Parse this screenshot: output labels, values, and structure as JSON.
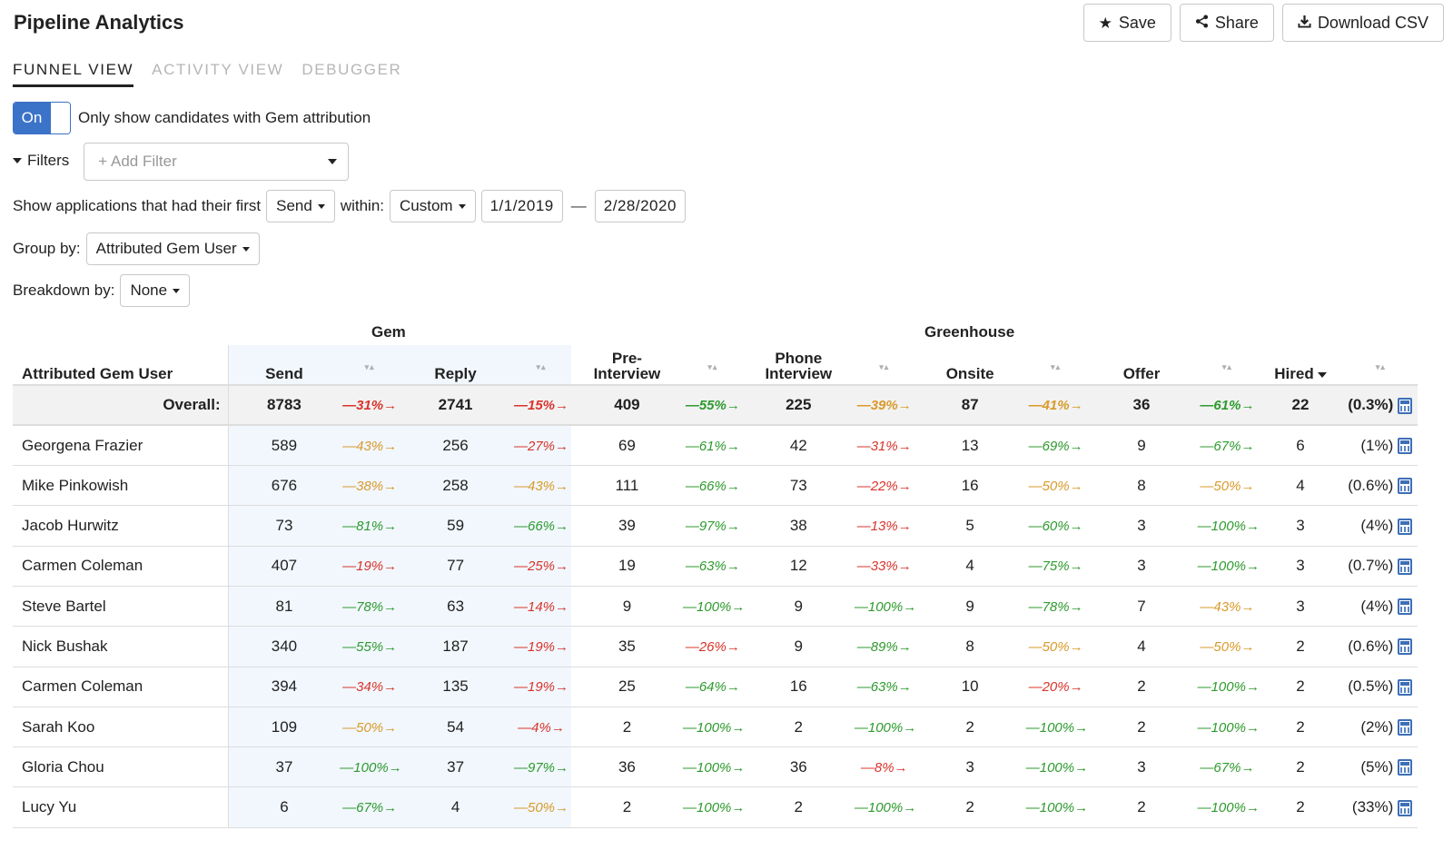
{
  "header": {
    "title": "Pipeline Analytics",
    "actions": [
      {
        "label": "Save",
        "icon": "star-icon"
      },
      {
        "label": "Share",
        "icon": "share-icon"
      },
      {
        "label": "Download CSV",
        "icon": "download-icon"
      }
    ]
  },
  "tabs": [
    {
      "label": "FUNNEL VIEW",
      "active": true
    },
    {
      "label": "ACTIVITY VIEW",
      "active": false
    },
    {
      "label": "DEBUGGER",
      "active": false
    }
  ],
  "gem_toggle": {
    "state": "On",
    "label": "Only show candidates with Gem attribution"
  },
  "filters": {
    "label": "Filters",
    "placeholder": "+ Add Filter"
  },
  "applications": {
    "prefix": "Show applications that had their first",
    "stage": "Send",
    "within_label": "within:",
    "range": "Custom",
    "start_date": "1/1/2019",
    "separator": "—",
    "end_date": "2/28/2020"
  },
  "group_by": {
    "label": "Group by:",
    "value": "Attributed Gem User"
  },
  "breakdown_by": {
    "label": "Breakdown by:",
    "value": "None"
  },
  "table": {
    "group_headers": {
      "gem": "Gem",
      "greenhouse": "Greenhouse"
    },
    "columns": {
      "name": "Attributed Gem User",
      "send": "Send",
      "reply": "Reply",
      "pre_interview_1": "Pre-",
      "pre_interview_2": "Interview",
      "phone_1": "Phone",
      "phone_2": "Interview",
      "onsite": "Onsite",
      "offer": "Offer",
      "hired": "Hired"
    },
    "overall": {
      "label": "Overall:",
      "send": "8783",
      "c1": "—31%→",
      "reply": "2741",
      "c2": "—15%→",
      "pre": "409",
      "c3": "—55%→",
      "phone": "225",
      "c4": "—39%→",
      "onsite": "87",
      "c5": "—41%→",
      "offer": "36",
      "c6": "—61%→",
      "hired": "22",
      "pct": "(0.3%)"
    },
    "rows": [
      {
        "name": "Georgena Frazier",
        "send": "589",
        "c1": "—43%→",
        "reply": "256",
        "c2": "—27%→",
        "pre": "69",
        "c3": "—61%→",
        "phone": "42",
        "c4": "—31%→",
        "onsite": "13",
        "c5": "—69%→",
        "offer": "9",
        "c6": "—67%→",
        "hired": "6",
        "pct": "(1%)"
      },
      {
        "name": "Mike Pinkowish",
        "send": "676",
        "c1": "—38%→",
        "reply": "258",
        "c2": "—43%→",
        "pre": "111",
        "c3": "—66%→",
        "phone": "73",
        "c4": "—22%→",
        "onsite": "16",
        "c5": "—50%→",
        "offer": "8",
        "c6": "—50%→",
        "hired": "4",
        "pct": "(0.6%)"
      },
      {
        "name": "Jacob Hurwitz",
        "send": "73",
        "c1": "—81%→",
        "reply": "59",
        "c2": "—66%→",
        "pre": "39",
        "c3": "—97%→",
        "phone": "38",
        "c4": "—13%→",
        "onsite": "5",
        "c5": "—60%→",
        "offer": "3",
        "c6": "—100%→",
        "hired": "3",
        "pct": "(4%)"
      },
      {
        "name": "Carmen Coleman",
        "send": "407",
        "c1": "—19%→",
        "reply": "77",
        "c2": "—25%→",
        "pre": "19",
        "c3": "—63%→",
        "phone": "12",
        "c4": "—33%→",
        "onsite": "4",
        "c5": "—75%→",
        "offer": "3",
        "c6": "—100%→",
        "hired": "3",
        "pct": "(0.7%)"
      },
      {
        "name": "Steve Bartel",
        "send": "81",
        "c1": "—78%→",
        "reply": "63",
        "c2": "—14%→",
        "pre": "9",
        "c3": "—100%→",
        "phone": "9",
        "c4": "—100%→",
        "onsite": "9",
        "c5": "—78%→",
        "offer": "7",
        "c6": "—43%→",
        "hired": "3",
        "pct": "(4%)"
      },
      {
        "name": "Nick Bushak",
        "send": "340",
        "c1": "—55%→",
        "reply": "187",
        "c2": "—19%→",
        "pre": "35",
        "c3": "—26%→",
        "phone": "9",
        "c4": "—89%→",
        "onsite": "8",
        "c5": "—50%→",
        "offer": "4",
        "c6": "—50%→",
        "hired": "2",
        "pct": "(0.6%)"
      },
      {
        "name": "Carmen Coleman",
        "send": "394",
        "c1": "—34%→",
        "reply": "135",
        "c2": "—19%→",
        "pre": "25",
        "c3": "—64%→",
        "phone": "16",
        "c4": "—63%→",
        "onsite": "10",
        "c5": "—20%→",
        "offer": "2",
        "c6": "—100%→",
        "hired": "2",
        "pct": "(0.5%)"
      },
      {
        "name": "Sarah Koo",
        "send": "109",
        "c1": "—50%→",
        "reply": "54",
        "c2": "—4%→",
        "pre": "2",
        "c3": "—100%→",
        "phone": "2",
        "c4": "—100%→",
        "onsite": "2",
        "c5": "—100%→",
        "offer": "2",
        "c6": "—100%→",
        "hired": "2",
        "pct": "(2%)"
      },
      {
        "name": "Gloria Chou",
        "send": "37",
        "c1": "—100%→",
        "reply": "37",
        "c2": "—97%→",
        "pre": "36",
        "c3": "—100%→",
        "phone": "36",
        "c4": "—8%→",
        "onsite": "3",
        "c5": "—100%→",
        "offer": "3",
        "c6": "—67%→",
        "hired": "2",
        "pct": "(5%)"
      },
      {
        "name": "Lucy Yu",
        "send": "6",
        "c1": "—67%→",
        "reply": "4",
        "c2": "—50%→",
        "pre": "2",
        "c3": "—100%→",
        "phone": "2",
        "c4": "—100%→",
        "onsite": "2",
        "c5": "—100%→",
        "offer": "2",
        "c6": "—100%→",
        "hired": "2",
        "pct": "(33%)"
      }
    ]
  },
  "colors": {
    "accent": "#3b73c9",
    "red": "#d9342b",
    "orange": "#d99a2a",
    "green": "#2e9a2e",
    "gem_column_bg": "#f1f7fd"
  }
}
